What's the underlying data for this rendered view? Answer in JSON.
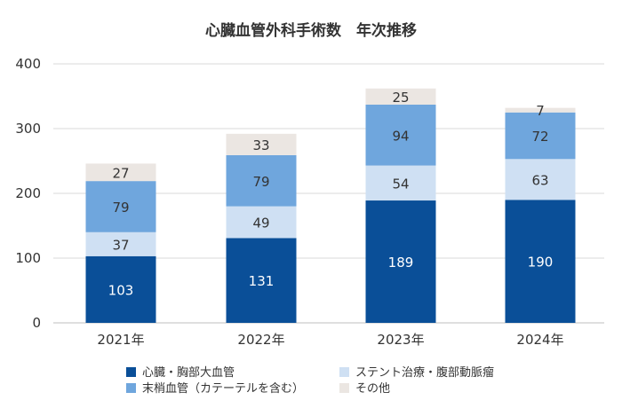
{
  "chart_data": {
    "type": "bar",
    "stacked": true,
    "title": "心臓血管外科手術数　年次推移",
    "categories": [
      "2021年",
      "2022年",
      "2023年",
      "2024年"
    ],
    "ylim": [
      0,
      400
    ],
    "yticks": [
      0,
      100,
      200,
      300,
      400
    ],
    "grid": true,
    "legend_position": "bottom",
    "series": [
      {
        "name": "心臓・胸部大血管",
        "color": "#0a4f98",
        "label_color": "#ffffff",
        "values": [
          103,
          131,
          189,
          190
        ]
      },
      {
        "name": "ステント治療・腹部動脈瘤",
        "color": "#cfe0f3",
        "label_color": "#333333",
        "values": [
          37,
          49,
          54,
          63
        ]
      },
      {
        "name": "末梢血管（カテーテルを含む）",
        "color": "#6fa6dd",
        "label_color": "#333333",
        "values": [
          79,
          79,
          94,
          72
        ]
      },
      {
        "name": "その他",
        "color": "#ebe6e2",
        "label_color": "#333333",
        "values": [
          27,
          33,
          25,
          7
        ]
      }
    ]
  }
}
